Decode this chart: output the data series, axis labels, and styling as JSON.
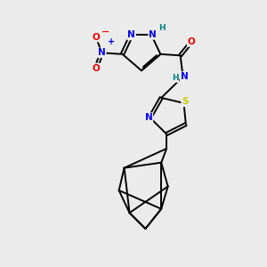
{
  "background_color": "#ebebeb",
  "figure_size": [
    3.0,
    3.0
  ],
  "dpi": 100,
  "atom_colors": {
    "N": "#0000ee",
    "O": "#ee0000",
    "S": "#cccc00",
    "H": "#008080",
    "C": "#000000"
  },
  "bond_color": "#000000",
  "bond_lw": 1.4
}
